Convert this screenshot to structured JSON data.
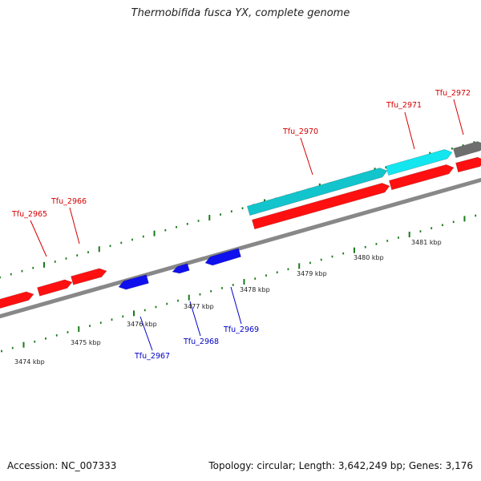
{
  "title": "Thermobifida fusca YX, complete genome",
  "footer": {
    "accession": "Accession: NC_007333",
    "stats": "Topology: circular; Length: 3,642,249 bp; Genes: 3,176"
  },
  "colors": {
    "forward_gene": "#ff1010",
    "reverse_gene": "#1010ee",
    "highlight_gene": "#12c4cc",
    "grey_gene": "#6e6e6e",
    "backbone": "#888888",
    "ticks": "#1a7a1a",
    "forward_label": "#d40000",
    "reverse_label": "#0000c8"
  },
  "scale_labels": [
    "3474 kbp",
    "3475 kbp",
    "3476 kbp",
    "3477 kbp",
    "3478 kbp",
    "3479 kbp",
    "3480 kbp",
    "3481 kbp"
  ],
  "gene_labels": {
    "forward": [
      "Tfu_2965",
      "Tfu_2966",
      "Tfu_2970",
      "Tfu_2971",
      "Tfu_2972"
    ],
    "reverse": [
      "Tfu_2967",
      "Tfu_2968",
      "Tfu_2969"
    ]
  }
}
